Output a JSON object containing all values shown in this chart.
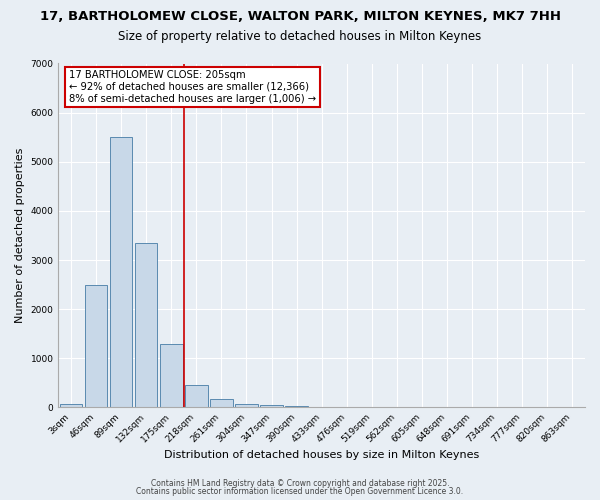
{
  "title1": "17, BARTHOLOMEW CLOSE, WALTON PARK, MILTON KEYNES, MK7 7HH",
  "title2": "Size of property relative to detached houses in Milton Keynes",
  "xlabel": "Distribution of detached houses by size in Milton Keynes",
  "ylabel": "Number of detached properties",
  "categories": [
    "3sqm",
    "46sqm",
    "89sqm",
    "132sqm",
    "175sqm",
    "218sqm",
    "261sqm",
    "304sqm",
    "347sqm",
    "390sqm",
    "433sqm",
    "476sqm",
    "519sqm",
    "562sqm",
    "605sqm",
    "648sqm",
    "691sqm",
    "734sqm",
    "777sqm",
    "820sqm",
    "863sqm"
  ],
  "values": [
    80,
    2500,
    5500,
    3350,
    1300,
    450,
    175,
    75,
    50,
    25,
    0,
    0,
    0,
    0,
    0,
    0,
    0,
    0,
    0,
    0,
    0
  ],
  "bar_color": "#c8d8e8",
  "bar_edge_color": "#5a8ab0",
  "red_line_index": 5,
  "red_line_color": "#cc0000",
  "annotation_text": "17 BARTHOLOMEW CLOSE: 205sqm\n← 92% of detached houses are smaller (12,366)\n8% of semi-detached houses are larger (1,006) →",
  "annotation_box_color": "#cc0000",
  "annotation_text_color": "#000000",
  "ylim": [
    0,
    7000
  ],
  "yticks": [
    0,
    1000,
    2000,
    3000,
    4000,
    5000,
    6000,
    7000
  ],
  "bg_color": "#e8eef4",
  "grid_color": "#ffffff",
  "footer1": "Contains HM Land Registry data © Crown copyright and database right 2025.",
  "footer2": "Contains public sector information licensed under the Open Government Licence 3.0.",
  "title1_fontsize": 9.5,
  "title2_fontsize": 8.5,
  "tick_fontsize": 6.5,
  "ylabel_fontsize": 8,
  "xlabel_fontsize": 8,
  "annotation_fontsize": 7.2,
  "footer_fontsize": 5.5
}
